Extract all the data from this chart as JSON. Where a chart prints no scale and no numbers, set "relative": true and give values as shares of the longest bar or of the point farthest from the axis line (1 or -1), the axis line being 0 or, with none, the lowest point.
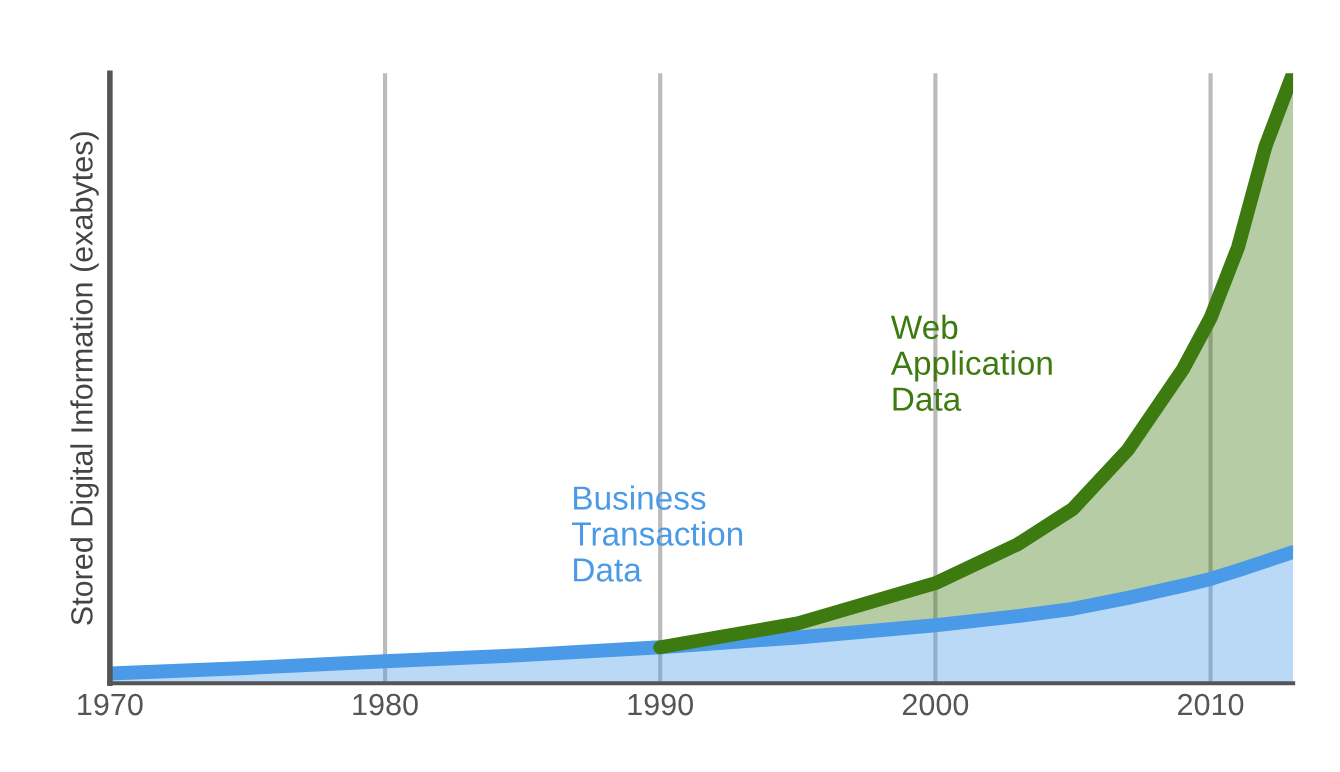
{
  "chart_data": {
    "type": "area",
    "stacked": true,
    "relative": true,
    "ylabel": "Stored Digital Information (exabytes)",
    "x": [
      1970,
      1975,
      1980,
      1985,
      1990,
      1995,
      2000,
      2003,
      2005,
      2007,
      2009,
      2010,
      2011,
      2012,
      2013
    ],
    "xlim": [
      1970,
      2013
    ],
    "xticks": [
      1970,
      1980,
      1990,
      2000,
      2010
    ],
    "grid": "x",
    "legend": false,
    "series": [
      {
        "name": "Business Transaction Data",
        "color": "#4a9ae8",
        "values": [
          0.016,
          0.025,
          0.036,
          0.046,
          0.059,
          0.075,
          0.095,
          0.11,
          0.122,
          0.14,
          0.16,
          0.171,
          0.185,
          0.2,
          0.215
        ]
      },
      {
        "name": "Web Application Data",
        "color": "#3d7a0f",
        "values": [
          null,
          null,
          null,
          null,
          0,
          0.023,
          0.069,
          0.118,
          0.164,
          0.243,
          0.355,
          0.428,
          0.53,
          0.681,
          0.785
        ]
      }
    ]
  }
}
